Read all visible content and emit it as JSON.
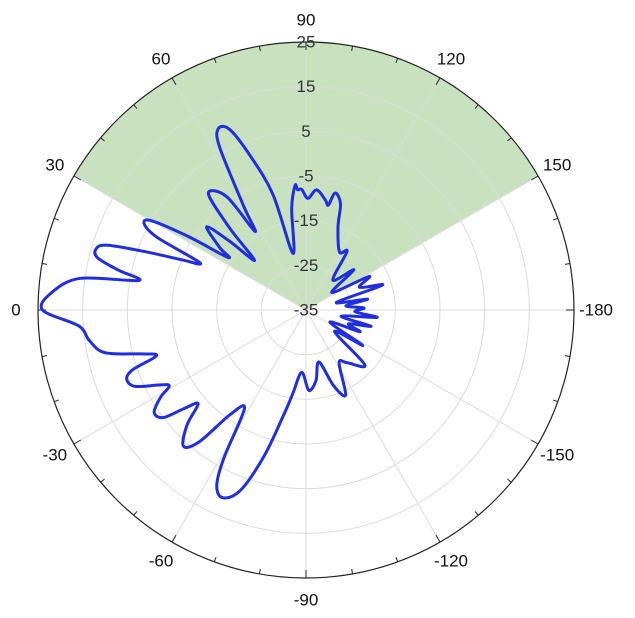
{
  "chart_data": {
    "type": "polar-line",
    "title": "",
    "angle_unit": "degrees",
    "angle_ticks": [
      {
        "angle": 90,
        "label": "90"
      },
      {
        "angle": 120,
        "label": "120"
      },
      {
        "angle": 150,
        "label": "150"
      },
      {
        "angle": 180,
        "label": "-180"
      },
      {
        "angle": -150,
        "label": "-150"
      },
      {
        "angle": -120,
        "label": "-120"
      },
      {
        "angle": -90,
        "label": "-90"
      },
      {
        "angle": -60,
        "label": "-60"
      },
      {
        "angle": -30,
        "label": "-30"
      },
      {
        "angle": 0,
        "label": "0"
      },
      {
        "angle": 30,
        "label": "30"
      },
      {
        "angle": 60,
        "label": "60"
      }
    ],
    "radial_ticks": [
      {
        "value": -35,
        "label": "-35"
      },
      {
        "value": -25,
        "label": "-25"
      },
      {
        "value": -15,
        "label": "-15"
      },
      {
        "value": -5,
        "label": "-5"
      },
      {
        "value": 5,
        "label": "5"
      },
      {
        "value": 15,
        "label": "15"
      },
      {
        "value": 25,
        "label": "25"
      }
    ],
    "r_range": [
      -35,
      25
    ],
    "grid": true,
    "shaded_sector": {
      "from_angle": 30,
      "to_angle": 150,
      "color": "#c8e2bf"
    },
    "series": [
      {
        "color": "#1f2ee0",
        "line_width": 3,
        "points": [
          [
            0,
            24
          ],
          [
            4,
            22
          ],
          [
            8,
            16
          ],
          [
            10,
            3
          ],
          [
            12,
            8
          ],
          [
            14,
            13
          ],
          [
            16,
            14
          ],
          [
            18,
            12
          ],
          [
            20,
            3
          ],
          [
            22,
            -5
          ],
          [
            24,
            -9
          ],
          [
            26,
            2
          ],
          [
            28,
            6
          ],
          [
            30,
            5
          ],
          [
            32,
            -4
          ],
          [
            34,
            -14
          ],
          [
            36,
            -11
          ],
          [
            40,
            -6
          ],
          [
            42,
            -12
          ],
          [
            44,
            -19
          ],
          [
            47,
            -10
          ],
          [
            50,
            -1
          ],
          [
            55,
            -4
          ],
          [
            57,
            -14
          ],
          [
            59,
            -8
          ],
          [
            62,
            6
          ],
          [
            64,
            10
          ],
          [
            67,
            9
          ],
          [
            70,
            2
          ],
          [
            74,
            -8
          ],
          [
            77,
            -22
          ],
          [
            82,
            -12
          ],
          [
            85,
            -7
          ],
          [
            86,
            -8
          ],
          [
            88,
            -8
          ],
          [
            91,
            -10
          ],
          [
            95,
            -8
          ],
          [
            100,
            -10
          ],
          [
            102,
            -11
          ],
          [
            104,
            -8
          ],
          [
            108,
            -10
          ],
          [
            111,
            -15
          ],
          [
            120,
            -20
          ],
          [
            125,
            -19
          ],
          [
            132,
            -26
          ],
          [
            140,
            -21
          ],
          [
            146,
            -28
          ],
          [
            152,
            -19
          ],
          [
            157,
            -22
          ],
          [
            162,
            -17
          ],
          [
            166,
            -28
          ],
          [
            170,
            -21
          ],
          [
            174,
            -26
          ],
          [
            178,
            -22
          ],
          [
            -178,
            -24
          ],
          [
            -174,
            -19
          ],
          [
            -170,
            -27
          ],
          [
            -166,
            -20
          ],
          [
            -162,
            -25
          ],
          [
            -158,
            -22
          ],
          [
            -153,
            -29
          ],
          [
            -148,
            -20
          ],
          [
            -143,
            -27
          ],
          [
            -137,
            -17
          ],
          [
            -128,
            -20
          ],
          [
            -122,
            -21
          ],
          [
            -115,
            -14
          ],
          [
            -110,
            -17
          ],
          [
            -104,
            -23
          ],
          [
            -98,
            -19
          ],
          [
            -92,
            -17
          ],
          [
            -86,
            -21
          ],
          [
            -81,
            -16
          ],
          [
            -78,
            -11
          ],
          [
            -74,
            -1
          ],
          [
            -70,
            8
          ],
          [
            -66,
            11
          ],
          [
            -63,
            9
          ],
          [
            -61,
            3
          ],
          [
            -58,
            -9
          ],
          [
            -54,
            -6
          ],
          [
            -51,
            3
          ],
          [
            -48,
            6
          ],
          [
            -44,
            2
          ],
          [
            -41,
            -3
          ],
          [
            -39,
            0
          ],
          [
            -37,
            5
          ],
          [
            -34,
            6
          ],
          [
            -31,
            3
          ],
          [
            -29,
            0
          ],
          [
            -27,
            2
          ],
          [
            -24,
            7
          ],
          [
            -21,
            8
          ],
          [
            -19,
            6
          ],
          [
            -17,
            0
          ],
          [
            -15,
            3
          ],
          [
            -12,
            11
          ],
          [
            -8,
            14
          ],
          [
            -4,
            16
          ],
          [
            0,
            24
          ]
        ]
      }
    ]
  }
}
